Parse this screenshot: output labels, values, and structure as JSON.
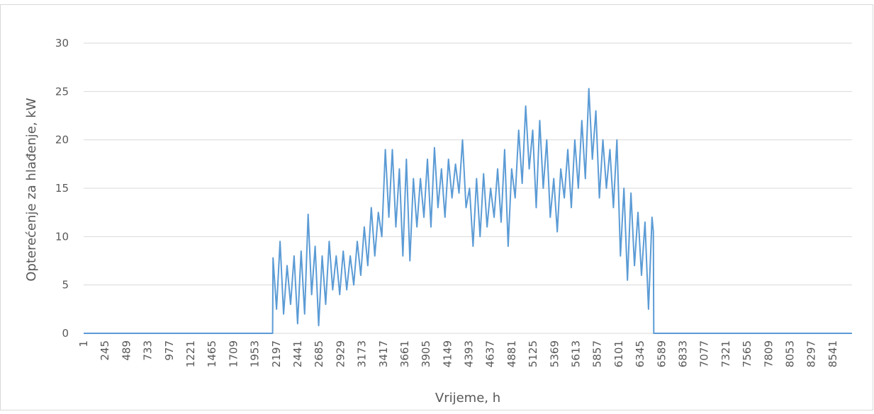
{
  "chart_data": {
    "type": "line",
    "x_label": "Vrijeme, h",
    "y_label": "Opterećenje za hlađenje, kW",
    "x": [
      1,
      2155,
      2160,
      2200,
      2240,
      2280,
      2320,
      2360,
      2400,
      2440,
      2480,
      2520,
      2560,
      2600,
      2640,
      2680,
      2720,
      2760,
      2800,
      2840,
      2880,
      2920,
      2960,
      3000,
      3040,
      3080,
      3120,
      3160,
      3200,
      3240,
      3280,
      3320,
      3360,
      3400,
      3440,
      3480,
      3520,
      3560,
      3600,
      3640,
      3680,
      3720,
      3760,
      3800,
      3840,
      3880,
      3920,
      3960,
      4000,
      4040,
      4080,
      4120,
      4160,
      4200,
      4240,
      4280,
      4320,
      4360,
      4400,
      4440,
      4480,
      4520,
      4560,
      4600,
      4640,
      4680,
      4720,
      4760,
      4800,
      4840,
      4880,
      4920,
      4960,
      5000,
      5040,
      5080,
      5120,
      5160,
      5200,
      5240,
      5280,
      5320,
      5360,
      5400,
      5440,
      5480,
      5520,
      5560,
      5600,
      5640,
      5680,
      5720,
      5760,
      5800,
      5840,
      5880,
      5920,
      5960,
      6000,
      6040,
      6080,
      6120,
      6160,
      6200,
      6240,
      6280,
      6320,
      6360,
      6400,
      6440,
      6480,
      6495,
      6500,
      8760
    ],
    "values": [
      0,
      0,
      7.8,
      2.5,
      9.5,
      2,
      7,
      3,
      8,
      1,
      8.5,
      2,
      12.3,
      4,
      9,
      0.8,
      8,
      3,
      9.5,
      4.5,
      8,
      4,
      8.5,
      4.5,
      8,
      5,
      9.5,
      6,
      11,
      7,
      13,
      8,
      12.5,
      10,
      19,
      12,
      19,
      11,
      17,
      8,
      18,
      7.5,
      16,
      11,
      16,
      12,
      18,
      11,
      19.2,
      13,
      17,
      12,
      18,
      14,
      17.5,
      14.5,
      20,
      13,
      15,
      9,
      16,
      10,
      16.5,
      11,
      15,
      12,
      17,
      11.5,
      19,
      9,
      17,
      14,
      21,
      15.5,
      23.5,
      17,
      21,
      13,
      22,
      15,
      20,
      12,
      16,
      10.5,
      17,
      14,
      19,
      13,
      20,
      15,
      22,
      16,
      25.3,
      18,
      23,
      14,
      20,
      15,
      19,
      13,
      20,
      8,
      15,
      5.5,
      14.5,
      7,
      12.5,
      6,
      11.5,
      2.5,
      12,
      10.5,
      0,
      0
    ],
    "color": "#5b9bd5",
    "xlim": [
      1,
      8760
    ],
    "xticks": [
      1,
      245,
      489,
      733,
      977,
      1221,
      1465,
      1709,
      1953,
      2197,
      2441,
      2685,
      2929,
      3173,
      3417,
      3661,
      3905,
      4149,
      4393,
      4637,
      4881,
      5125,
      5369,
      5613,
      5857,
      6101,
      6345,
      6589,
      6833,
      7077,
      7321,
      7565,
      7809,
      8053,
      8297,
      8541
    ],
    "ylim": [
      0,
      30
    ],
    "yticks": [
      0,
      5,
      10,
      15,
      20,
      25,
      30
    ],
    "grid": true
  }
}
